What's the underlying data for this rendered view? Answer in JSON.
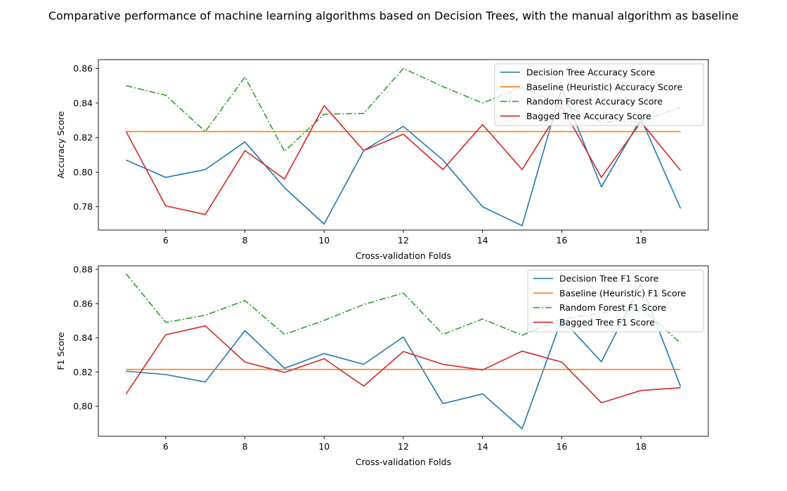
{
  "figure": {
    "title": "Comparative performance of machine learning algorithms based on Decision Trees, with the manual algorithm as baseline"
  },
  "chart_data": [
    {
      "type": "line",
      "xlabel": "Cross-validation Folds",
      "ylabel": "Accuracy Score",
      "xlim": [
        4.3,
        19.7
      ],
      "ylim": [
        0.7665,
        0.8651
      ],
      "xticks": [
        6,
        8,
        10,
        12,
        14,
        16,
        18
      ],
      "yticks": [
        0.78,
        0.8,
        0.82,
        0.84,
        0.86
      ],
      "x": [
        5,
        6,
        7,
        8,
        9,
        10,
        11,
        12,
        13,
        14,
        15,
        16,
        17,
        18,
        19
      ],
      "legend": "top-right",
      "grid": false,
      "series": [
        {
          "name": "Decision Tree Accuracy Score",
          "color": "#1f77b4",
          "dash": "solid",
          "values": [
            0.807,
            0.797,
            0.8015,
            0.8175,
            0.791,
            0.77,
            0.8125,
            0.8265,
            0.807,
            0.78,
            0.769,
            0.849,
            0.7915,
            0.831,
            0.779
          ]
        },
        {
          "name": "Baseline (Heuristic) Accuracy Score",
          "color": "#ff7f0e",
          "dash": "solid",
          "values": [
            0.8235,
            0.8235,
            0.8235,
            0.8235,
            0.8235,
            0.8235,
            0.8235,
            0.8235,
            0.8235,
            0.8235,
            0.8235,
            0.8235,
            0.8235,
            0.8235,
            0.8235
          ]
        },
        {
          "name": "Random Forest Accuracy Score",
          "color": "#2ca02c",
          "dash": "dashdot",
          "values": [
            0.85,
            0.8445,
            0.8235,
            0.855,
            0.812,
            0.8335,
            0.834,
            0.86,
            0.8495,
            0.84,
            0.849,
            0.8395,
            0.829,
            0.8295,
            0.8375
          ]
        },
        {
          "name": "Bagged Tree Accuracy Score",
          "color": "#d62728",
          "dash": "solid",
          "values": [
            0.8235,
            0.7805,
            0.7755,
            0.8125,
            0.796,
            0.8385,
            0.8125,
            0.822,
            0.8015,
            0.8275,
            0.8015,
            0.838,
            0.797,
            0.829,
            0.801
          ]
        }
      ]
    },
    {
      "type": "line",
      "xlabel": "Cross-validation Folds",
      "ylabel": "F1 Score",
      "xlim": [
        4.3,
        19.7
      ],
      "ylim": [
        0.7824,
        0.8821
      ],
      "xticks": [
        6,
        8,
        10,
        12,
        14,
        16,
        18
      ],
      "yticks": [
        0.8,
        0.82,
        0.84,
        0.86,
        0.88
      ],
      "x": [
        5,
        6,
        7,
        8,
        9,
        10,
        11,
        12,
        13,
        14,
        15,
        16,
        17,
        18,
        19
      ],
      "legend": "top-right",
      "grid": false,
      "series": [
        {
          "name": "Decision Tree F1 Score",
          "color": "#1f77b4",
          "dash": "solid",
          "values": [
            0.8205,
            0.8185,
            0.8142,
            0.8442,
            0.8222,
            0.8308,
            0.8245,
            0.8405,
            0.8015,
            0.8072,
            0.7868,
            0.851,
            0.826,
            0.8715,
            0.8115
          ]
        },
        {
          "name": "Baseline (Heuristic) F1 Score",
          "color": "#ff7f0e",
          "dash": "solid",
          "values": [
            0.8215,
            0.8215,
            0.8215,
            0.8215,
            0.8215,
            0.8215,
            0.8215,
            0.8215,
            0.8215,
            0.8215,
            0.8215,
            0.8215,
            0.8215,
            0.8215,
            0.8215
          ]
        },
        {
          "name": "Random Forest F1 Score",
          "color": "#2ca02c",
          "dash": "dashdot",
          "values": [
            0.8775,
            0.849,
            0.8532,
            0.8618,
            0.842,
            0.8502,
            0.8595,
            0.8662,
            0.842,
            0.851,
            0.8415,
            0.851,
            0.8545,
            0.8575,
            0.837
          ]
        },
        {
          "name": "Bagged Tree F1 Score",
          "color": "#d62728",
          "dash": "solid",
          "values": [
            0.8072,
            0.8418,
            0.847,
            0.8258,
            0.8198,
            0.8278,
            0.8118,
            0.832,
            0.8245,
            0.8212,
            0.8322,
            0.8258,
            0.802,
            0.8092,
            0.8108
          ]
        }
      ]
    }
  ]
}
